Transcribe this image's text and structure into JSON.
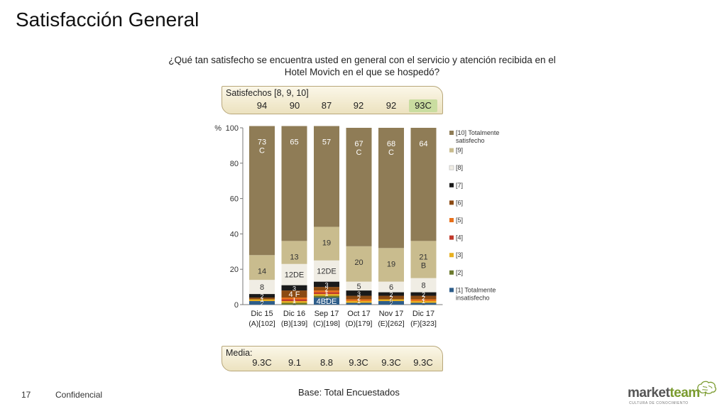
{
  "page": {
    "title": "Satisfacción General",
    "page_number": "17",
    "confidential": "Confidencial",
    "base_note": "Base: Total Encuestados"
  },
  "question": {
    "line1": "¿Qué tan satisfecho se encuentra usted en general con el servicio y atención recibida en el",
    "line2": "Hotel Movich en el que se hospedó?"
  },
  "satisfied_banner": {
    "label": "Satisfechos [8, 9, 10]",
    "values": [
      "94",
      "90",
      "87",
      "92",
      "92",
      "93C"
    ],
    "highlight_index": 5
  },
  "mean_banner": {
    "label": "Media:",
    "values": [
      "9.3C",
      "9.1",
      "8.8",
      "9.3C",
      "9.3C",
      "9.3C"
    ]
  },
  "logo": {
    "brand_a": "market",
    "brand_b": "team",
    "tagline": "CULTURA DE CONOCIMIENTO"
  },
  "chart_data": {
    "type": "bar",
    "stacked": true,
    "y_unit": "%",
    "ylim": [
      0,
      100
    ],
    "yticks": [
      0,
      20,
      40,
      60,
      80,
      100
    ],
    "categories": [
      "Dic 15",
      "Dic 16",
      "Sep 17",
      "Oct 17",
      "Nov 17",
      "Dic 17"
    ],
    "category_sublabels": [
      "(A)[102]",
      "(B)[139]",
      "(C)[198]",
      "(D)[179]",
      "(E)[262]",
      "(F)[323]"
    ],
    "series": [
      {
        "name": "[1] Totalmente insatisfecho",
        "color": "#2e5d8a",
        "values": [
          2,
          0,
          4,
          1,
          2,
          1
        ],
        "labels": [
          "2",
          "",
          "4BDE",
          "1",
          "2",
          "1"
        ]
      },
      {
        "name": "[2]",
        "color": "#6b7a2e",
        "values": [
          0,
          1,
          1,
          0,
          0,
          0
        ],
        "labels": [
          "",
          "1",
          "1",
          "",
          "",
          ""
        ]
      },
      {
        "name": "[3]",
        "color": "#e8b020",
        "values": [
          1,
          1,
          1,
          1,
          1,
          1
        ],
        "labels": [
          "1",
          "1",
          "1",
          "1",
          "1",
          "1"
        ]
      },
      {
        "name": "[4]",
        "color": "#c0392b",
        "values": [
          0,
          1,
          1,
          0,
          0,
          0
        ],
        "labels": [
          "",
          "1",
          "1",
          "",
          "",
          ""
        ]
      },
      {
        "name": "[5]",
        "color": "#e8701a",
        "values": [
          0,
          1,
          1,
          1,
          0,
          1
        ],
        "labels": [
          "",
          "1",
          "1",
          "1",
          "",
          "1"
        ]
      },
      {
        "name": "[6]",
        "color": "#8b4a12",
        "values": [
          1,
          4,
          2,
          2,
          2,
          2
        ],
        "labels": [
          "1",
          "4 F",
          "2",
          "2",
          "2",
          "2"
        ]
      },
      {
        "name": "[7]",
        "color": "#1a1a1a",
        "values": [
          2,
          3,
          3,
          3,
          2,
          2
        ],
        "labels": [
          "2",
          "3",
          "3",
          "3",
          "2",
          "2"
        ]
      },
      {
        "name": "[8]",
        "color": "#f0ede4",
        "values": [
          8,
          12,
          12,
          5,
          6,
          8
        ],
        "labels": [
          "8",
          "12DE",
          "12DE",
          "5",
          "6",
          "8"
        ]
      },
      {
        "name": "[9]",
        "color": "#c9bc8e",
        "values": [
          14,
          13,
          19,
          20,
          19,
          21
        ],
        "labels": [
          "14",
          "13",
          "19",
          "20",
          "19",
          "21\nB"
        ]
      },
      {
        "name": "[10] Totalmente satisfecho",
        "color": "#8f7c56",
        "values": [
          73,
          65,
          57,
          67,
          68,
          64
        ],
        "labels": [
          "73\nC",
          "65",
          "57",
          "67\nC",
          "68\nC",
          "64"
        ]
      }
    ],
    "legend_order": [
      "[10] Totalmente satisfecho",
      "[9]",
      "[8]",
      "[7]",
      "[6]",
      "[5]",
      "[4]",
      "[3]",
      "[2]",
      "[1] Totalmente insatisfecho"
    ],
    "legend_position": "right",
    "grid": false
  }
}
